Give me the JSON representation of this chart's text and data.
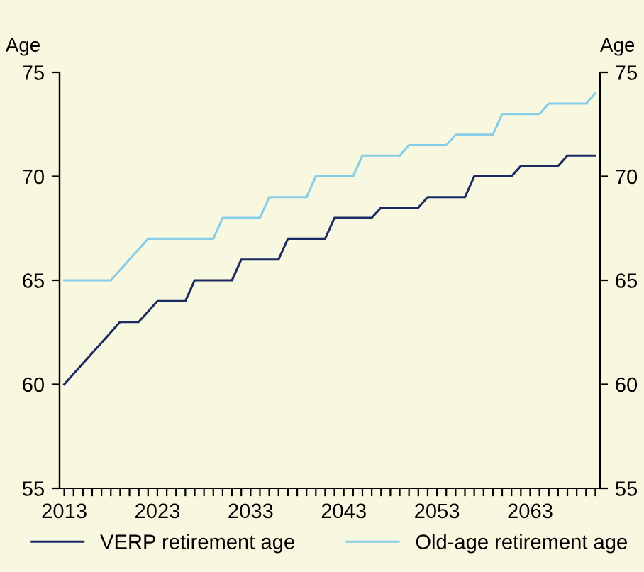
{
  "chart_data": {
    "type": "line",
    "ylabel": "Age",
    "y2label": "Age",
    "x": [
      2013,
      2014,
      2015,
      2016,
      2017,
      2018,
      2019,
      2020,
      2021,
      2022,
      2023,
      2024,
      2025,
      2026,
      2027,
      2028,
      2029,
      2030,
      2031,
      2032,
      2033,
      2034,
      2035,
      2036,
      2037,
      2038,
      2039,
      2040,
      2041,
      2042,
      2043,
      2044,
      2045,
      2046,
      2047,
      2048,
      2049,
      2050,
      2051,
      2052,
      2053,
      2054,
      2055,
      2056,
      2057,
      2058,
      2059,
      2060,
      2061,
      2062,
      2063,
      2064,
      2065,
      2066,
      2067,
      2068,
      2069,
      2070
    ],
    "series": [
      {
        "name": "VERP retirement age",
        "color": "#1b2a63",
        "values": [
          60,
          60.5,
          61,
          61.5,
          62,
          62.5,
          63,
          63,
          63,
          63.5,
          64,
          64,
          64,
          64,
          65,
          65,
          65,
          65,
          65,
          66,
          66,
          66,
          66,
          66,
          67,
          67,
          67,
          67,
          67,
          68,
          68,
          68,
          68,
          68,
          68.5,
          68.5,
          68.5,
          68.5,
          68.5,
          69,
          69,
          69,
          69,
          69,
          70,
          70,
          70,
          70,
          70,
          70.5,
          70.5,
          70.5,
          70.5,
          70.5,
          71,
          71,
          71,
          71
        ]
      },
      {
        "name": "Old-age retirement age",
        "color": "#87cde8",
        "values": [
          65,
          65,
          65,
          65,
          65,
          65,
          65.5,
          66,
          66.5,
          67,
          67,
          67,
          67,
          67,
          67,
          67,
          67,
          68,
          68,
          68,
          68,
          68,
          69,
          69,
          69,
          69,
          69,
          70,
          70,
          70,
          70,
          70,
          71,
          71,
          71,
          71,
          71,
          71.5,
          71.5,
          71.5,
          71.5,
          71.5,
          72,
          72,
          72,
          72,
          72,
          73,
          73,
          73,
          73,
          73,
          73.5,
          73.5,
          73.5,
          73.5,
          73.5,
          74
        ]
      }
    ],
    "xlim": [
      2012.5,
      2070.5
    ],
    "xticks": [
      2013,
      {
        "value": 2014,
        "label": null
      },
      {
        "value": 2015,
        "label": null
      },
      {
        "value": 2016,
        "label": null
      },
      {
        "value": 2017,
        "label": null
      },
      {
        "value": 2018,
        "label": null
      },
      {
        "value": 2019,
        "label": null
      },
      {
        "value": 2020,
        "label": null
      },
      {
        "value": 2021,
        "label": null
      },
      {
        "value": 2022,
        "label": null
      },
      2023,
      {
        "value": 2024,
        "label": null
      },
      {
        "value": 2025,
        "label": null
      },
      {
        "value": 2026,
        "label": null
      },
      {
        "value": 2027,
        "label": null
      },
      {
        "value": 2028,
        "label": null
      },
      {
        "value": 2029,
        "label": null
      },
      {
        "value": 2030,
        "label": null
      },
      {
        "value": 2031,
        "label": null
      },
      {
        "value": 2032,
        "label": null
      },
      2033,
      {
        "value": 2034,
        "label": null
      },
      {
        "value": 2035,
        "label": null
      },
      {
        "value": 2036,
        "label": null
      },
      {
        "value": 2037,
        "label": null
      },
      {
        "value": 2038,
        "label": null
      },
      {
        "value": 2039,
        "label": null
      },
      {
        "value": 2040,
        "label": null
      },
      {
        "value": 2041,
        "label": null
      },
      {
        "value": 2042,
        "label": null
      },
      2043,
      {
        "value": 2044,
        "label": null
      },
      {
        "value": 2045,
        "label": null
      },
      {
        "value": 2046,
        "label": null
      },
      {
        "value": 2047,
        "label": null
      },
      {
        "value": 2048,
        "label": null
      },
      {
        "value": 2049,
        "label": null
      },
      {
        "value": 2050,
        "label": null
      },
      {
        "value": 2051,
        "label": null
      },
      {
        "value": 2052,
        "label": null
      },
      2053,
      {
        "value": 2054,
        "label": null
      },
      {
        "value": 2055,
        "label": null
      },
      {
        "value": 2056,
        "label": null
      },
      {
        "value": 2057,
        "label": null
      },
      {
        "value": 2058,
        "label": null
      },
      {
        "value": 2059,
        "label": null
      },
      {
        "value": 2060,
        "label": null
      },
      {
        "value": 2061,
        "label": null
      },
      {
        "value": 2062,
        "label": null
      },
      2063,
      {
        "value": 2064,
        "label": null
      },
      {
        "value": 2065,
        "label": null
      },
      {
        "value": 2066,
        "label": null
      },
      {
        "value": 2067,
        "label": null
      },
      {
        "value": 2068,
        "label": null
      },
      {
        "value": 2069,
        "label": null
      },
      {
        "value": 2070,
        "label": null
      }
    ],
    "ylim": [
      55,
      75
    ],
    "yticks": [
      55,
      60,
      65,
      70,
      75
    ],
    "y2lim": [
      55,
      75
    ],
    "y2ticks": [
      55,
      60,
      65,
      70,
      75
    ],
    "grid": false,
    "legend": "bottom",
    "marker": "none",
    "line_style": "solid"
  }
}
